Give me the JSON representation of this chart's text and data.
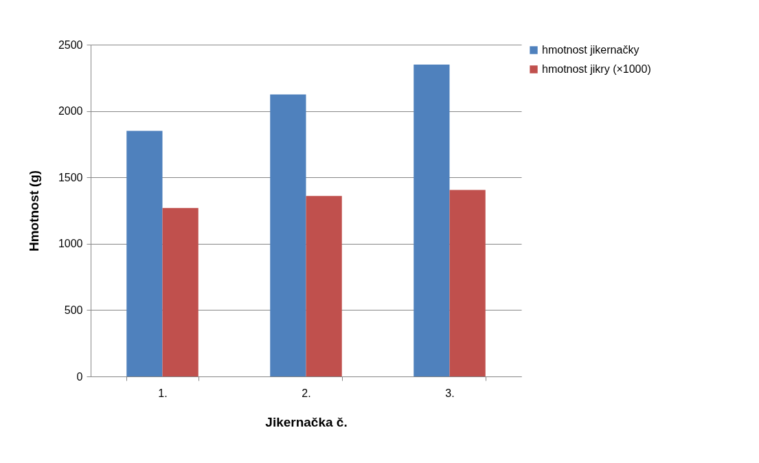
{
  "chart_data": {
    "type": "bar",
    "xlabel": "Jikernačka č.",
    "ylabel": "Hmotnost (g)",
    "categories": [
      "1.",
      "2.",
      "3."
    ],
    "series": [
      {
        "name": "hmotnost jikernačky",
        "color": "#4f81bd",
        "values": [
          1850,
          2125,
          2350
        ]
      },
      {
        "name": "hmotnost jikry (×1000)",
        "color": "#c0504d",
        "values": [
          1270,
          1360,
          1405
        ]
      }
    ],
    "ylim": [
      0,
      2500
    ],
    "yticks": [
      0,
      500,
      1000,
      1500,
      2000,
      2500
    ],
    "grid": "y",
    "legend": "right"
  }
}
